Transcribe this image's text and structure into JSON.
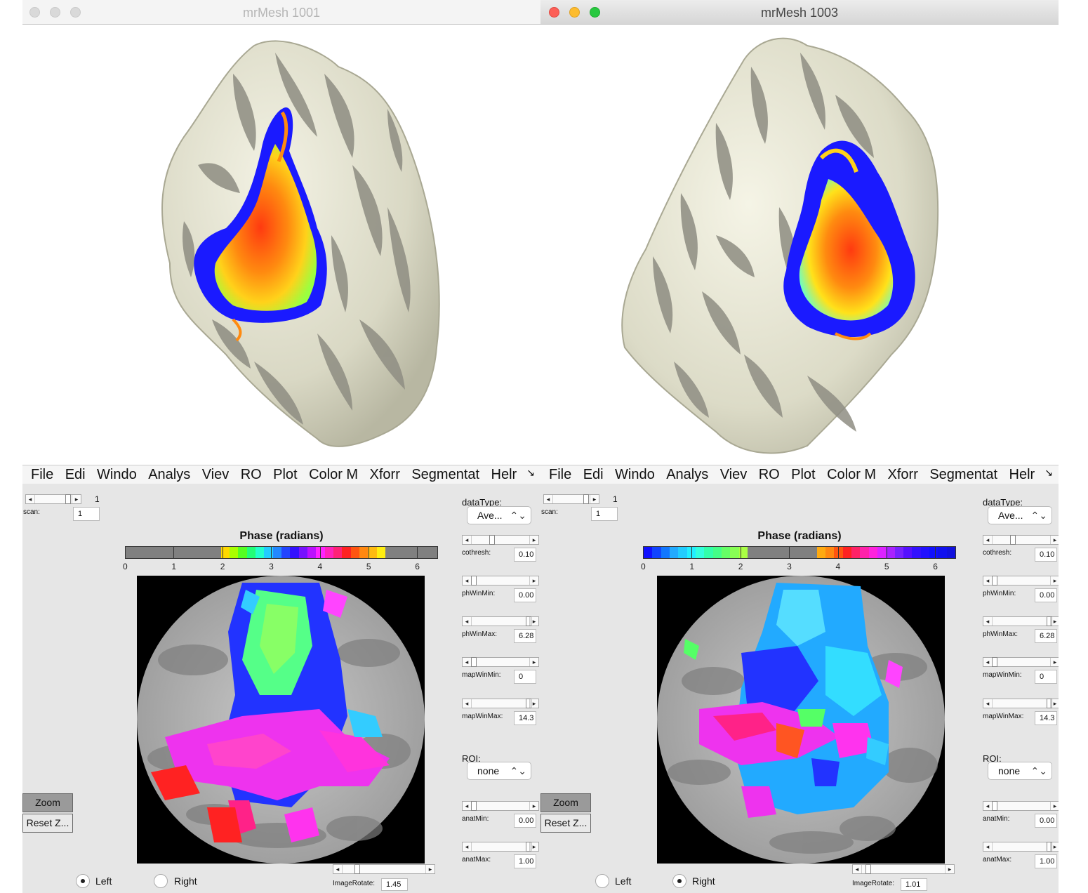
{
  "windows": [
    {
      "title": "mrMesh 1001",
      "menu": [
        "File",
        "Edi",
        "Windo",
        "Analys",
        "Viev",
        "RO",
        "Plot",
        "Color M",
        "Xforr",
        "Segmentat",
        "Helr"
      ],
      "menu_overflow": "↘",
      "scan": {
        "value_label": "1",
        "label": "scan:",
        "field": "1"
      },
      "datatype": {
        "label": "dataType:",
        "value": "Ave..."
      },
      "colorbar": {
        "title": "Phase (radians)",
        "ticks": [
          "0",
          "1",
          "2",
          "3",
          "4",
          "5",
          "6"
        ],
        "colors": [
          "#808080",
          "#808080",
          "#808080",
          "#808080",
          "#808080",
          "#808080",
          "#808080",
          "#808080",
          "#808080",
          "#808080",
          "#808080",
          "#ffd800",
          "#aaff00",
          "#55ff22",
          "#22ff77",
          "#22ffcc",
          "#22ccff",
          "#2288ff",
          "#2244ff",
          "#3311ff",
          "#7711ff",
          "#bb11ff",
          "#ff22ff",
          "#ff22bb",
          "#ff2277",
          "#ff2222",
          "#ff5511",
          "#ff8811",
          "#ffbb11",
          "#ffee11",
          "#808080",
          "#808080",
          "#808080",
          "#808080",
          "#808080",
          "#808080"
        ]
      },
      "controls": [
        {
          "label": "cothresh:",
          "value": "0.10",
          "thumb": 0.33
        },
        {
          "label": "phWinMin:",
          "value": "0.00",
          "thumb": 0.0
        },
        {
          "label": "phWinMax:",
          "value": "6.28",
          "thumb": 1.0
        },
        {
          "label": "mapWinMin:",
          "value": "0",
          "thumb": 0.0
        },
        {
          "label": "mapWinMax:",
          "value": "14.3",
          "thumb": 1.0
        },
        {
          "label": "anatMin:",
          "value": "0.00",
          "thumb": 0.0
        },
        {
          "label": "anatMax:",
          "value": "1.00",
          "thumb": 1.0
        }
      ],
      "roi": {
        "label": "ROI:",
        "value": "none"
      },
      "buttons": {
        "zoom": "Zoom",
        "reset": "Reset Z..."
      },
      "hemisphere": {
        "left": "Left",
        "right": "Right",
        "selected": "left"
      },
      "image_rotate": {
        "label": "ImageRotate:",
        "value": "1.45"
      }
    },
    {
      "title": "mrMesh 1003",
      "menu": [
        "File",
        "Edi",
        "Windo",
        "Analys",
        "Viev",
        "RO",
        "Plot",
        "Color M",
        "Xforr",
        "Segmentat",
        "Helr"
      ],
      "menu_overflow": "↘",
      "scan": {
        "value_label": "1",
        "label": "scan:",
        "field": "1"
      },
      "datatype": {
        "label": "dataType:",
        "value": "Ave..."
      },
      "colorbar": {
        "title": "Phase (radians)",
        "ticks": [
          "0",
          "1",
          "2",
          "3",
          "4",
          "5",
          "6"
        ],
        "colors": [
          "#1111ff",
          "#1144ff",
          "#1177ff",
          "#22aaff",
          "#22ccff",
          "#22eeff",
          "#33ffdd",
          "#33ffaa",
          "#44ff88",
          "#66ff66",
          "#88ff55",
          "#aaff44",
          "#808080",
          "#808080",
          "#808080",
          "#808080",
          "#808080",
          "#808080",
          "#808080",
          "#808080",
          "#ffaa11",
          "#ff8811",
          "#ff5511",
          "#ff2222",
          "#ff2266",
          "#ff22aa",
          "#ff22dd",
          "#dd22ff",
          "#aa22ff",
          "#7722ff",
          "#5511ff",
          "#3311ff",
          "#2211ff",
          "#1111ff",
          "#1111ee",
          "#1111dd"
        ]
      },
      "controls": [
        {
          "label": "cothresh:",
          "value": "0.10",
          "thumb": 0.33
        },
        {
          "label": "phWinMin:",
          "value": "0.00",
          "thumb": 0.0
        },
        {
          "label": "phWinMax:",
          "value": "6.28",
          "thumb": 1.0
        },
        {
          "label": "mapWinMin:",
          "value": "0",
          "thumb": 0.0
        },
        {
          "label": "mapWinMax:",
          "value": "14.3",
          "thumb": 1.0
        },
        {
          "label": "anatMin:",
          "value": "0.00",
          "thumb": 0.0
        },
        {
          "label": "anatMax:",
          "value": "1.00",
          "thumb": 1.0
        }
      ],
      "roi": {
        "label": "ROI:",
        "value": "none"
      },
      "buttons": {
        "zoom": "Zoom",
        "reset": "Reset Z..."
      },
      "hemisphere": {
        "left": "Left",
        "right": "Right",
        "selected": "right"
      },
      "image_rotate": {
        "label": "ImageRotate:",
        "value": "1.01"
      }
    }
  ],
  "icons": {
    "close": "close-icon",
    "minimize": "minimize-icon",
    "maximize": "maximize-icon",
    "slider_left": "arrow-left-icon",
    "slider_right": "arrow-right-icon",
    "popup": "chevron-up-down-icon"
  }
}
